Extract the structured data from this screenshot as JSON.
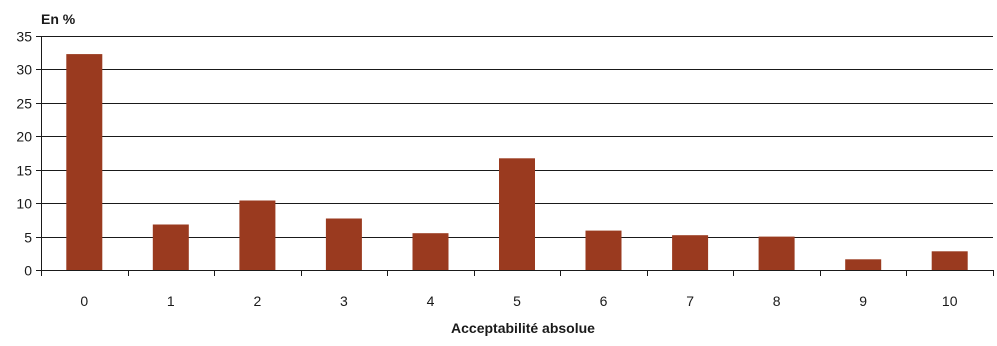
{
  "chart_data": {
    "type": "bar",
    "title": "",
    "ylabel": "En %",
    "xlabel": "Acceptabilité absolue",
    "categories": [
      "0",
      "1",
      "2",
      "3",
      "4",
      "5",
      "6",
      "7",
      "8",
      "9",
      "10"
    ],
    "values": [
      32.3,
      6.8,
      10.4,
      7.7,
      5.5,
      16.7,
      5.9,
      5.2,
      5.0,
      1.6,
      2.8
    ],
    "ylim": [
      0,
      35
    ],
    "yticks": [
      "0",
      "5",
      "10",
      "15",
      "20",
      "25",
      "30",
      "35"
    ],
    "grid": true,
    "legend": "none",
    "bar_color": "#9a3a1f",
    "grid_color": "#1a1a1a"
  }
}
